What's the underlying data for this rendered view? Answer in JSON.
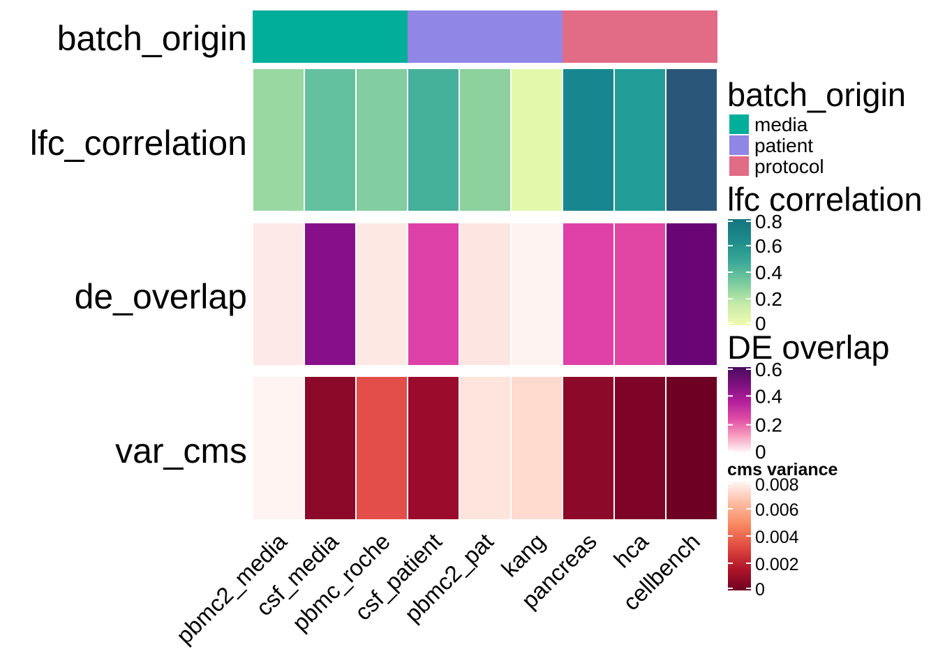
{
  "chart_data": {
    "type": "heatmap",
    "columns": [
      "pbmc2_media",
      "csf_media",
      "pbmc_roche",
      "csf_patient",
      "pbmc2_pat",
      "kang",
      "pancreas",
      "hca",
      "cellbench"
    ],
    "annotation": {
      "name": "batch_origin",
      "groups": [
        {
          "label": "media",
          "color": "#00AE9A"
        },
        {
          "label": "patient",
          "color": "#9086E5"
        },
        {
          "label": "protocol",
          "color": "#E26B86"
        }
      ],
      "values": [
        "media",
        "media",
        "media",
        "patient",
        "patient",
        "patient",
        "protocol",
        "protocol",
        "protocol"
      ]
    },
    "rows": [
      {
        "name": "lfc_correlation",
        "values": [
          0.28,
          0.42,
          0.33,
          0.48,
          0.3,
          0.05,
          0.76,
          0.64,
          0.95
        ],
        "colors": [
          "#9AD8A2",
          "#63C1A0",
          "#82CDA1",
          "#45B09A",
          "#8CD19E",
          "#E4F8AC",
          "#17868F",
          "#229D97",
          "#2A5779"
        ]
      },
      {
        "name": "de_overlap",
        "values": [
          0.02,
          0.52,
          0.02,
          0.25,
          0.02,
          0.01,
          0.25,
          0.22,
          0.6
        ],
        "colors": [
          "#FDE9E7",
          "#87108A",
          "#FDE8E4",
          "#DD41A8",
          "#FDE5E2",
          "#FFF3F1",
          "#DE40A8",
          "#E246A5",
          "#690574"
        ]
      },
      {
        "name": "var_cms",
        "values": [
          0.0082,
          0.0005,
          0.0035,
          0.0006,
          0.0077,
          0.0073,
          0.0005,
          0.0003,
          0.0001
        ],
        "colors": [
          "#FFF4F2",
          "#8B0828",
          "#E34E4A",
          "#9B0B2C",
          "#FEE4DC",
          "#FFDACF",
          "#8D092A",
          "#7D0327",
          "#6D0023"
        ]
      }
    ],
    "legends": [
      {
        "title": "batch_origin",
        "type": "categorical",
        "entries": [
          {
            "label": "media",
            "color": "#00AE9A"
          },
          {
            "label": "patient",
            "color": "#9086E5"
          },
          {
            "label": "protocol",
            "color": "#E26B86"
          }
        ]
      },
      {
        "title": "lfc correlation",
        "type": "continuous",
        "range": [
          0,
          0.8
        ],
        "ticks": [
          "0.8",
          "0.6",
          "0.4",
          "0.2",
          "0"
        ],
        "tick_values": [
          0.8,
          0.6,
          0.4,
          0.2,
          0
        ],
        "gradient": [
          "#15747F",
          "#1E8B8B",
          "#3BA897",
          "#7ACB9E",
          "#C6EBA8",
          "#F1FAB0"
        ]
      },
      {
        "title": "DE overlap",
        "type": "continuous",
        "range": [
          0,
          0.6
        ],
        "ticks": [
          "0.6",
          "0.4",
          "0.2",
          "0"
        ],
        "tick_values": [
          0.6,
          0.4,
          0.2,
          0
        ],
        "gradient": [
          "#470B5C",
          "#7E107F",
          "#B3209B",
          "#E04DA6",
          "#F7A1BF",
          "#FFFFFF"
        ]
      },
      {
        "title": "cms variance",
        "type": "continuous",
        "range": [
          0,
          0.008
        ],
        "ticks": [
          "0.008",
          "0.006",
          "0.004",
          "0.002",
          "0"
        ],
        "tick_values": [
          0.008,
          0.006,
          0.004,
          0.002,
          0
        ],
        "gradient": [
          "#FFF6F3",
          "#FDBBA2",
          "#F8875F",
          "#E04A40",
          "#B11629",
          "#6D0023"
        ]
      }
    ]
  }
}
